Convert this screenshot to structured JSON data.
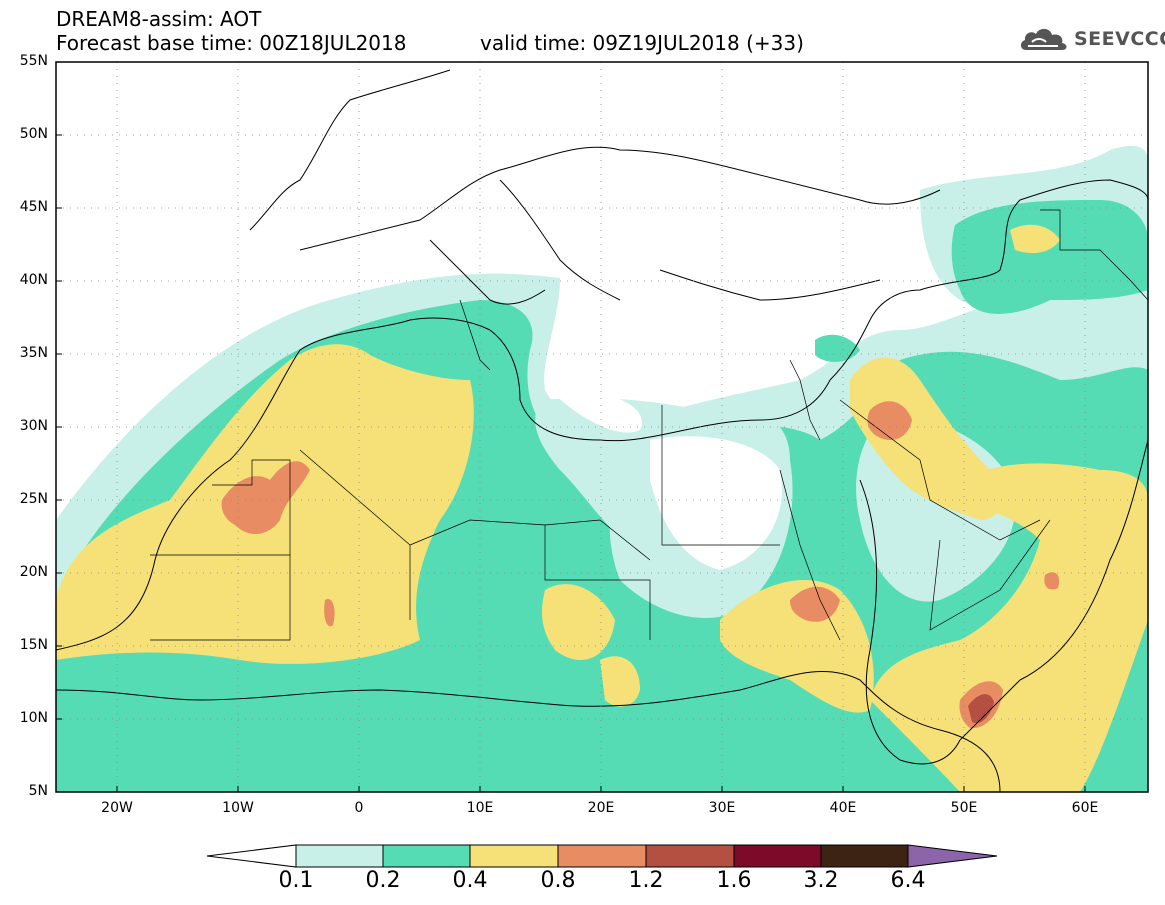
{
  "header": {
    "model": "DREAM8-assim: AOT",
    "base_time": "Forecast base time: 00Z18JUL2018",
    "valid_time": "valid time: 09Z19JUL2018 (+33)"
  },
  "logo": {
    "name": "cloud-icon",
    "text": "SEEVCCC"
  },
  "map": {
    "lon_range": [
      -25,
      65
    ],
    "lat_range": [
      5,
      55
    ],
    "lat_labels": [
      "55N",
      "50N",
      "45N",
      "40N",
      "35N",
      "30N",
      "25N",
      "20N",
      "15N",
      "10N",
      "5N"
    ],
    "lon_labels": [
      "20W",
      "10W",
      "0",
      "10E",
      "20E",
      "30E",
      "40E",
      "50E",
      "60E"
    ]
  },
  "colorbar": {
    "levels": [
      "0.1",
      "0.2",
      "0.4",
      "0.8",
      "1.2",
      "1.6",
      "3.2",
      "6.4"
    ],
    "colors": [
      "#c8f0e8",
      "#55dcb4",
      "#f5e178",
      "#e88c64",
      "#b45041",
      "#7d0a28",
      "#3c2314",
      "#8c64aa"
    ]
  },
  "field_colors": {
    "low": "#c8f0e8",
    "mid": "#55dcb4",
    "high": "#f5e178",
    "very_high": "#e88c64",
    "extreme": "#b45041"
  }
}
